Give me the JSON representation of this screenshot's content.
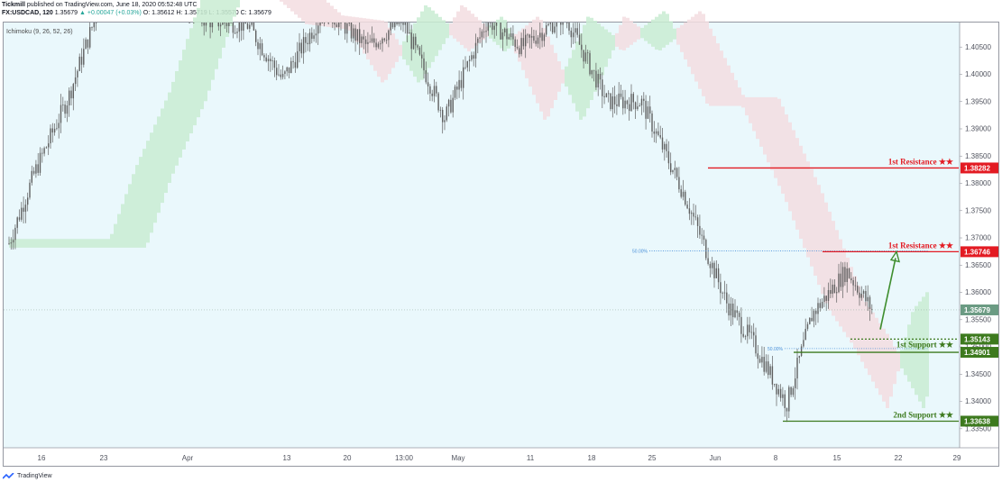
{
  "header": {
    "publisher": "Tickmill",
    "published_text": "published on TradingView.com, June 18, 2020 05:52:48 UTC",
    "symbol": "FX:USDCAD, 120",
    "last": "1.35679",
    "change": "▲ +0.00047 (+0.03%)",
    "ohlc": "O: 1.35612 H: 1.35719 L: 1.35570 C: 1.35679"
  },
  "indicator_label": "Ichimoku (9, 26, 52, 26)",
  "footer": {
    "brand": "TradingView"
  },
  "colors": {
    "background": "#eaf8fc",
    "resistance": "#e31b23",
    "support": "#3d7a1e",
    "price_badge": "#6b9b83",
    "candle": "#5f5f5f",
    "cloud_bull": "#c9ecd2",
    "cloud_bear": "#f3dde0",
    "fib_line": "#4a90d9"
  },
  "chart_data": {
    "type": "line",
    "symbol": "USDCAD",
    "timeframe": "120",
    "ylim": [
      1.3315,
      1.4095
    ],
    "y_ticks": [
      "1.40500",
      "1.40000",
      "1.39500",
      "1.39000",
      "1.38500",
      "1.38000",
      "1.37500",
      "1.37000",
      "1.36500",
      "1.36000",
      "1.35500",
      "1.35000",
      "1.34500",
      "1.34000",
      "1.33500"
    ],
    "x_ticks": [
      "16",
      "23",
      "Apr",
      "13",
      "20",
      "13:00",
      "May",
      "11",
      "18",
      "25",
      "Jun",
      "8",
      "15",
      "22",
      "29"
    ],
    "approx_close_path": {
      "x": [
        "Mar 9",
        "Mar 12",
        "Mar 16",
        "Mar 19",
        "Mar 23",
        "Mar 27",
        "Apr 1",
        "Apr 6",
        "Apr 10",
        "Apr 15",
        "Apr 20",
        "Apr 24",
        "Apr 29",
        "May 4",
        "May 8",
        "May 13",
        "May 18",
        "May 22",
        "May 27",
        "Jun 1",
        "Jun 4",
        "Jun 8",
        "Jun 11",
        "Jun 15",
        "Jun 18"
      ],
      "y": [
        1.369,
        1.382,
        1.396,
        1.41,
        1.426,
        1.417,
        1.41,
        1.409,
        1.399,
        1.412,
        1.405,
        1.41,
        1.392,
        1.41,
        1.405,
        1.411,
        1.395,
        1.395,
        1.378,
        1.358,
        1.351,
        1.3395,
        1.356,
        1.364,
        1.3568
      ]
    },
    "levels": [
      {
        "label": "1st Resistance ★★",
        "value": 1.38282,
        "badge": "1.38282",
        "role": "resistance"
      },
      {
        "label": "1st Resistance ★★",
        "value": 1.36746,
        "badge": "1.36746",
        "role": "resistance"
      },
      {
        "label": "1st Support ★★",
        "value": 1.35143,
        "badge": "1.35143",
        "role": "support"
      },
      {
        "label": "",
        "value": 1.34901,
        "badge": "1.34901",
        "role": "support"
      },
      {
        "label": "2nd Support ★★",
        "value": 1.33638,
        "badge": "1.33638",
        "role": "support"
      }
    ],
    "current_price": {
      "value": 1.35679,
      "badge": "1.35679"
    },
    "fib_levels": [
      {
        "label": "50.00%",
        "value": 1.3676
      },
      {
        "label": "50.00%",
        "value": 1.3497
      }
    ]
  }
}
